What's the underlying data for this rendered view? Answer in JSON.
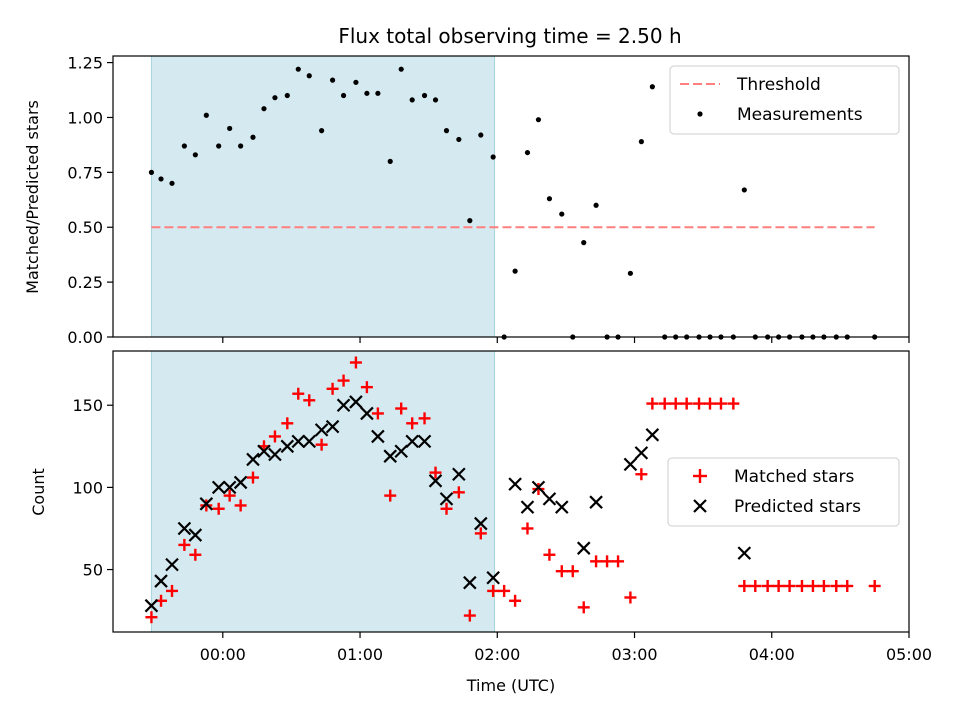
{
  "chart_data": {
    "title": "Flux total observing time = 2.50 h",
    "xlabel": "Time (UTC)",
    "x_unit": "hours since 00:00 UTC",
    "xlim": [
      -0.8,
      5.0
    ],
    "xticks": [
      {
        "value": 0,
        "label": "00:00"
      },
      {
        "value": 1,
        "label": "01:00"
      },
      {
        "value": 2,
        "label": "02:00"
      },
      {
        "value": 3,
        "label": "03:00"
      },
      {
        "value": 4,
        "label": "04:00"
      },
      {
        "value": 5,
        "label": "05:00"
      }
    ],
    "shaded_interval": {
      "start": -0.52,
      "end": 1.98,
      "color": "#d4eaf0"
    },
    "panels": [
      {
        "id": "ratio",
        "type": "scatter",
        "ylabel": "Matched/Predicted stars",
        "ylim": [
          0,
          1.28
        ],
        "yticks": [
          {
            "value": 0,
            "label": "0.00"
          },
          {
            "value": 0.25,
            "label": "0.25"
          },
          {
            "value": 0.5,
            "label": "0.50"
          },
          {
            "value": 0.75,
            "label": "0.75"
          },
          {
            "value": 1.0,
            "label": "1.00"
          },
          {
            "value": 1.25,
            "label": "1.25"
          }
        ],
        "legend": {
          "position": "top-right",
          "entries": [
            {
              "label": "Threshold",
              "style": "dashed-line",
              "color": "#ff7f7f"
            },
            {
              "label": "Measurements",
              "style": "dot",
              "color": "#000000"
            }
          ]
        },
        "series": [
          {
            "name": "Threshold",
            "type": "line",
            "style": "dashed",
            "color": "#ff7f7f",
            "x": [
              -0.52,
              4.75
            ],
            "y": [
              0.5,
              0.5
            ]
          },
          {
            "name": "Measurements",
            "type": "scatter",
            "marker": "dot",
            "color": "#000000",
            "points": [
              [
                -0.52,
                0.75
              ],
              [
                -0.45,
                0.72
              ],
              [
                -0.37,
                0.7
              ],
              [
                -0.28,
                0.87
              ],
              [
                -0.2,
                0.83
              ],
              [
                -0.12,
                1.01
              ],
              [
                -0.03,
                0.87
              ],
              [
                0.05,
                0.95
              ],
              [
                0.13,
                0.87
              ],
              [
                0.22,
                0.91
              ],
              [
                0.3,
                1.04
              ],
              [
                0.38,
                1.09
              ],
              [
                0.47,
                1.1
              ],
              [
                0.55,
                1.22
              ],
              [
                0.63,
                1.19
              ],
              [
                0.72,
                0.94
              ],
              [
                0.8,
                1.17
              ],
              [
                0.88,
                1.1
              ],
              [
                0.97,
                1.16
              ],
              [
                1.05,
                1.11
              ],
              [
                1.13,
                1.11
              ],
              [
                1.22,
                0.8
              ],
              [
                1.3,
                1.22
              ],
              [
                1.38,
                1.08
              ],
              [
                1.47,
                1.1
              ],
              [
                1.55,
                1.08
              ],
              [
                1.63,
                0.94
              ],
              [
                1.72,
                0.9
              ],
              [
                1.8,
                0.53
              ],
              [
                1.88,
                0.92
              ],
              [
                1.97,
                0.82
              ],
              [
                2.05,
                0.0
              ],
              [
                2.13,
                0.3
              ],
              [
                2.22,
                0.84
              ],
              [
                2.3,
                0.99
              ],
              [
                2.38,
                0.63
              ],
              [
                2.47,
                0.56
              ],
              [
                2.55,
                0.0
              ],
              [
                2.63,
                0.43
              ],
              [
                2.72,
                0.6
              ],
              [
                2.8,
                0.0
              ],
              [
                2.88,
                0.0
              ],
              [
                2.97,
                0.29
              ],
              [
                3.05,
                0.89
              ],
              [
                3.13,
                1.14
              ],
              [
                3.22,
                0.0
              ],
              [
                3.3,
                0.0
              ],
              [
                3.38,
                0.0
              ],
              [
                3.47,
                0.0
              ],
              [
                3.55,
                0.0
              ],
              [
                3.63,
                0.0
              ],
              [
                3.72,
                0.0
              ],
              [
                3.8,
                0.67
              ],
              [
                3.88,
                0.0
              ],
              [
                3.97,
                0.0
              ],
              [
                4.05,
                0.0
              ],
              [
                4.13,
                0.0
              ],
              [
                4.22,
                0.0
              ],
              [
                4.3,
                0.0
              ],
              [
                4.38,
                0.0
              ],
              [
                4.47,
                0.0
              ],
              [
                4.55,
                0.0
              ],
              [
                4.75,
                0.0
              ]
            ]
          }
        ]
      },
      {
        "id": "counts",
        "type": "scatter",
        "ylabel": "Count",
        "ylim": [
          12,
          183
        ],
        "yticks": [
          {
            "value": 50,
            "label": "50"
          },
          {
            "value": 100,
            "label": "100"
          },
          {
            "value": 150,
            "label": "150"
          }
        ],
        "legend": {
          "position": "center-right",
          "entries": [
            {
              "label": "Matched stars",
              "style": "plus",
              "color": "#ff0000"
            },
            {
              "label": "Predicted stars",
              "style": "x",
              "color": "#000000"
            }
          ]
        },
        "series": [
          {
            "name": "Matched stars",
            "type": "scatter",
            "marker": "plus",
            "color": "#ff0000",
            "points": [
              [
                -0.52,
                21
              ],
              [
                -0.45,
                31
              ],
              [
                -0.37,
                37
              ],
              [
                -0.28,
                65
              ],
              [
                -0.2,
                59
              ],
              [
                -0.12,
                89
              ],
              [
                -0.03,
                87
              ],
              [
                0.05,
                95
              ],
              [
                0.13,
                89
              ],
              [
                0.22,
                106
              ],
              [
                0.3,
                125
              ],
              [
                0.38,
                131
              ],
              [
                0.47,
                139
              ],
              [
                0.55,
                157
              ],
              [
                0.63,
                153
              ],
              [
                0.72,
                126
              ],
              [
                0.8,
                160
              ],
              [
                0.88,
                165
              ],
              [
                0.97,
                176
              ],
              [
                1.05,
                161
              ],
              [
                1.13,
                145
              ],
              [
                1.22,
                95
              ],
              [
                1.3,
                148
              ],
              [
                1.38,
                139
              ],
              [
                1.47,
                142
              ],
              [
                1.55,
                109
              ],
              [
                1.63,
                87
              ],
              [
                1.72,
                97
              ],
              [
                1.8,
                22
              ],
              [
                1.88,
                72
              ],
              [
                1.97,
                37
              ],
              [
                2.05,
                37
              ],
              [
                2.13,
                31
              ],
              [
                2.22,
                75
              ],
              [
                2.3,
                99
              ],
              [
                2.38,
                59
              ],
              [
                2.47,
                49
              ],
              [
                2.55,
                49
              ],
              [
                2.63,
                27
              ],
              [
                2.72,
                55
              ],
              [
                2.8,
                55
              ],
              [
                2.88,
                55
              ],
              [
                2.97,
                33
              ],
              [
                3.05,
                108
              ],
              [
                3.13,
                151
              ],
              [
                3.22,
                151
              ],
              [
                3.3,
                151
              ],
              [
                3.38,
                151
              ],
              [
                3.47,
                151
              ],
              [
                3.55,
                151
              ],
              [
                3.63,
                151
              ],
              [
                3.72,
                151
              ],
              [
                3.8,
                40
              ],
              [
                3.88,
                40
              ],
              [
                3.97,
                40
              ],
              [
                4.05,
                40
              ],
              [
                4.13,
                40
              ],
              [
                4.22,
                40
              ],
              [
                4.3,
                40
              ],
              [
                4.38,
                40
              ],
              [
                4.47,
                40
              ],
              [
                4.55,
                40
              ],
              [
                4.75,
                40
              ]
            ]
          },
          {
            "name": "Predicted stars",
            "type": "scatter",
            "marker": "x",
            "color": "#000000",
            "points": [
              [
                -0.52,
                28
              ],
              [
                -0.45,
                43
              ],
              [
                -0.37,
                53
              ],
              [
                -0.28,
                75
              ],
              [
                -0.2,
                71
              ],
              [
                -0.12,
                90
              ],
              [
                -0.03,
                100
              ],
              [
                0.05,
                100
              ],
              [
                0.13,
                103
              ],
              [
                0.22,
                117
              ],
              [
                0.3,
                122
              ],
              [
                0.38,
                120
              ],
              [
                0.47,
                125
              ],
              [
                0.55,
                128
              ],
              [
                0.63,
                128
              ],
              [
                0.72,
                135
              ],
              [
                0.8,
                137
              ],
              [
                0.88,
                150
              ],
              [
                0.97,
                152
              ],
              [
                1.05,
                145
              ],
              [
                1.13,
                131
              ],
              [
                1.22,
                119
              ],
              [
                1.3,
                122
              ],
              [
                1.38,
                128
              ],
              [
                1.47,
                128
              ],
              [
                1.55,
                104
              ],
              [
                1.63,
                93
              ],
              [
                1.72,
                108
              ],
              [
                1.8,
                42
              ],
              [
                1.88,
                78
              ],
              [
                1.97,
                45
              ],
              [
                2.13,
                102
              ],
              [
                2.22,
                88
              ],
              [
                2.3,
                100
              ],
              [
                2.38,
                93
              ],
              [
                2.47,
                88
              ],
              [
                2.63,
                63
              ],
              [
                2.72,
                91
              ],
              [
                2.97,
                114
              ],
              [
                3.05,
                121
              ],
              [
                3.13,
                132
              ],
              [
                3.8,
                60
              ]
            ]
          }
        ]
      }
    ]
  }
}
